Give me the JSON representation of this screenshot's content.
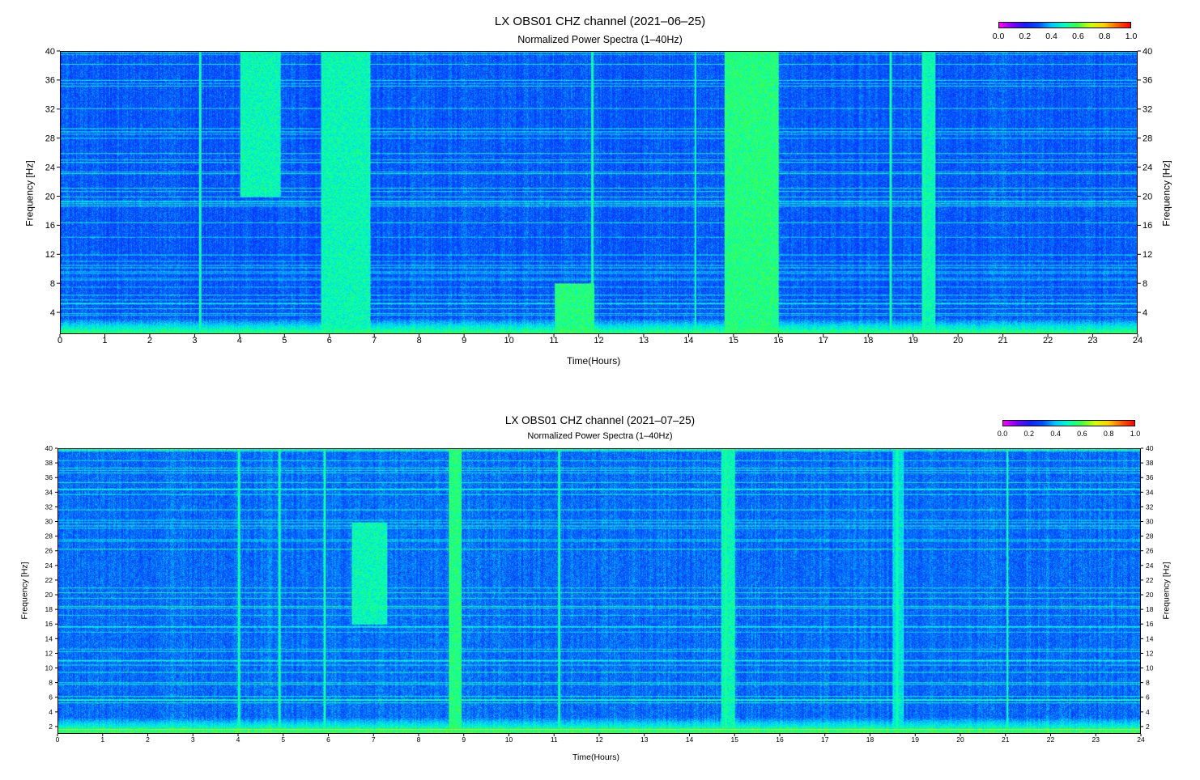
{
  "chart_data": [
    {
      "type": "heatmap",
      "title": "LX OBS01  CHZ channel (2021–06–25)",
      "subtitle": "Normalized Power Spectra (1–40Hz)",
      "xlabel": "Time(Hours)",
      "ylabel": "Frequency [Hz]",
      "xlim": [
        0,
        24
      ],
      "ylim": [
        1,
        40
      ],
      "x_ticks": [
        0,
        1,
        2,
        3,
        4,
        5,
        6,
        7,
        8,
        9,
        10,
        11,
        12,
        13,
        14,
        15,
        16,
        17,
        18,
        19,
        20,
        21,
        22,
        23,
        24
      ],
      "y_ticks": [
        4,
        8,
        12,
        16,
        20,
        24,
        28,
        32,
        36,
        40
      ],
      "colorbar": {
        "ticks": [
          "0.0",
          "0.2",
          "0.4",
          "0.6",
          "0.8",
          "1.0"
        ],
        "range": [
          0.0,
          1.0
        ]
      },
      "colormap": [
        "#ff00ff",
        "#8000ff",
        "#1a1aff",
        "#0050ff",
        "#00c8ff",
        "#00ffc0",
        "#40ff40",
        "#d0ff00",
        "#ffd000",
        "#ff6000",
        "#ff0000"
      ],
      "background_level": 0.3,
      "vertical_events_hours": [
        3.1,
        11.85,
        14.15,
        18.5,
        19.25
      ],
      "broadband_bursts": [
        {
          "start_hour": 4.0,
          "end_hour": 4.9,
          "fmin": 20,
          "fmax": 40,
          "level": 0.5
        },
        {
          "start_hour": 5.8,
          "end_hour": 6.9,
          "fmin": 1,
          "fmax": 40,
          "level": 0.5
        },
        {
          "start_hour": 11.0,
          "end_hour": 11.9,
          "fmin": 1,
          "fmax": 8,
          "level": 0.55
        },
        {
          "start_hour": 14.8,
          "end_hour": 16.0,
          "fmin": 1,
          "fmax": 40,
          "level": 0.55
        },
        {
          "start_hour": 19.2,
          "end_hour": 19.5,
          "fmin": 1,
          "fmax": 40,
          "level": 0.5
        }
      ]
    },
    {
      "type": "heatmap",
      "title": "LX OBS01  CHZ channel (2021–07–25)",
      "subtitle": "Normalized Power Spectra (1–40Hz)",
      "xlabel": "Time(Hours)",
      "ylabel": "Frequency [Hz]",
      "xlim": [
        0,
        24
      ],
      "ylim": [
        1,
        40
      ],
      "x_ticks": [
        0,
        1,
        2,
        3,
        4,
        5,
        6,
        7,
        8,
        9,
        10,
        11,
        12,
        13,
        14,
        15,
        16,
        17,
        18,
        19,
        20,
        21,
        22,
        23,
        24
      ],
      "y_ticks": [
        2,
        4,
        6,
        8,
        10,
        12,
        14,
        16,
        18,
        20,
        22,
        24,
        26,
        28,
        30,
        32,
        34,
        36,
        38,
        40
      ],
      "colorbar": {
        "ticks": [
          "0.0",
          "0.2",
          "0.4",
          "0.6",
          "0.8",
          "1.0"
        ],
        "range": [
          0.0,
          1.0
        ]
      },
      "colormap": [
        "#ff00ff",
        "#8000ff",
        "#1a1aff",
        "#0050ff",
        "#00c8ff",
        "#00ffc0",
        "#40ff40",
        "#d0ff00",
        "#ffd000",
        "#ff6000",
        "#ff0000"
      ],
      "background_level": 0.32,
      "vertical_events_hours": [
        4.0,
        4.9,
        5.9,
        8.8,
        11.1,
        14.8,
        18.6,
        21.05
      ],
      "broadband_bursts": [
        {
          "start_hour": 6.5,
          "end_hour": 7.3,
          "fmin": 16,
          "fmax": 30,
          "level": 0.5
        },
        {
          "start_hour": 8.65,
          "end_hour": 8.95,
          "fmin": 1,
          "fmax": 40,
          "level": 0.55
        },
        {
          "start_hour": 14.7,
          "end_hour": 15.0,
          "fmin": 1,
          "fmax": 40,
          "level": 0.5
        },
        {
          "start_hour": 18.5,
          "end_hour": 18.75,
          "fmin": 1,
          "fmax": 40,
          "level": 0.45
        }
      ]
    }
  ]
}
